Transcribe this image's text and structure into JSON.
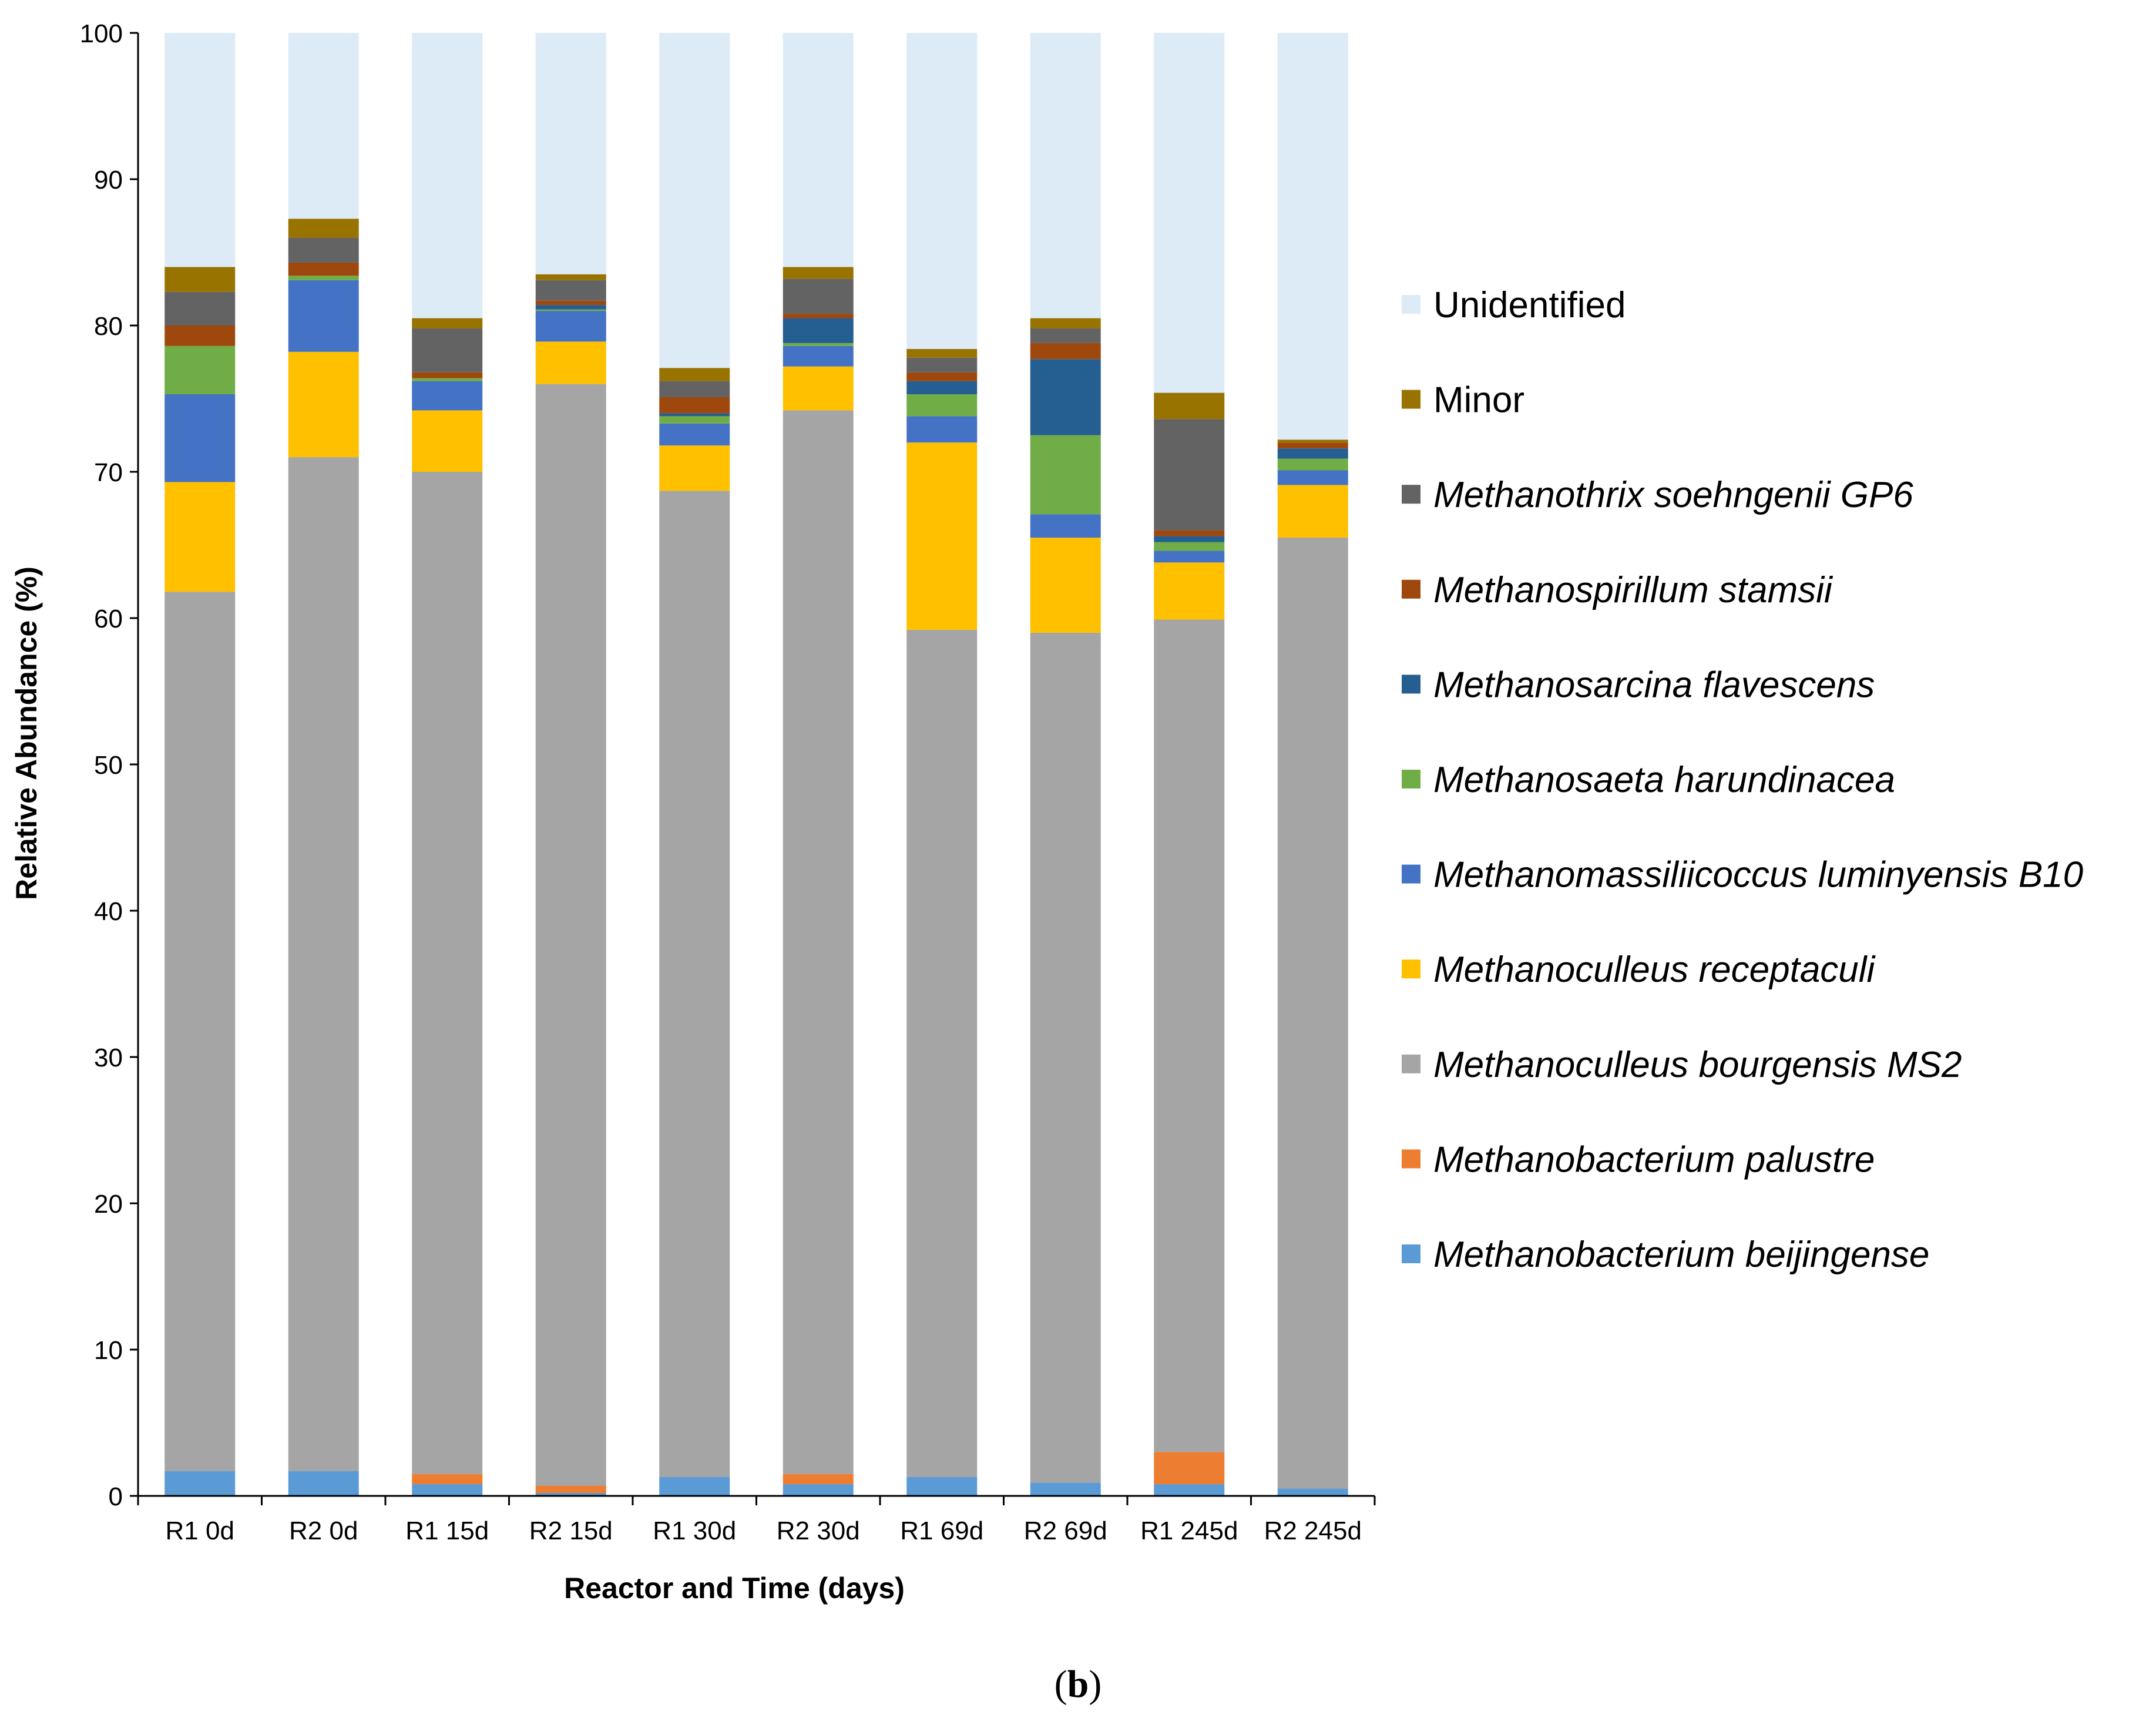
{
  "chart_data": {
    "type": "bar",
    "stacked": true,
    "title": "",
    "xlabel": "Reactor and Time (days)",
    "ylabel": "Relative Abundance (%)",
    "ylim": [
      0,
      100
    ],
    "yticks": [
      0,
      10,
      20,
      30,
      40,
      50,
      60,
      70,
      80,
      90,
      100
    ],
    "grid": false,
    "legend_position": "right",
    "panel_label": "b",
    "categories": [
      "R1 0d",
      "R2 0d",
      "R1 15d",
      "R2 15d",
      "R1 30d",
      "R2 30d",
      "R1 69d",
      "R2 69d",
      "R1 245d",
      "R2 245d"
    ],
    "series": [
      {
        "name": "Methanobacterium beijingense",
        "italic": true,
        "color": "#5B9BD5",
        "values": [
          1.7,
          1.7,
          0.8,
          0.2,
          1.3,
          0.8,
          1.3,
          0.9,
          0.8,
          0.5
        ]
      },
      {
        "name": "Methanobacterium palustre",
        "italic": true,
        "color": "#ED7D31",
        "values": [
          0.0,
          0.0,
          0.7,
          0.5,
          0.0,
          0.7,
          0.0,
          0.0,
          2.2,
          0.0
        ]
      },
      {
        "name": "Methanoculleus bourgensis MS2",
        "italic": true,
        "color": "#A5A5A5",
        "values": [
          60.1,
          69.3,
          68.5,
          75.3,
          67.4,
          72.7,
          57.9,
          58.1,
          56.9,
          65.0
        ]
      },
      {
        "name": "Methanoculleus receptaculi",
        "italic": true,
        "color": "#FFC000",
        "values": [
          7.5,
          7.2,
          4.2,
          2.9,
          3.1,
          3.0,
          12.8,
          6.5,
          3.9,
          3.6
        ]
      },
      {
        "name": "Methanomassiliicoccus luminyensis B10",
        "italic": true,
        "color": "#4472C4",
        "values": [
          6.0,
          4.9,
          2.0,
          2.1,
          1.5,
          1.4,
          1.8,
          1.6,
          0.8,
          1.0
        ]
      },
      {
        "name": "Methanosaeta harundinacea",
        "italic": true,
        "color": "#70AD47",
        "values": [
          3.3,
          0.3,
          0.2,
          0.1,
          0.5,
          0.2,
          1.5,
          5.4,
          0.6,
          0.8
        ]
      },
      {
        "name": "Methanosarcina flavescens",
        "italic": true,
        "color": "#255E91",
        "values": [
          0.0,
          0.0,
          0.0,
          0.3,
          0.2,
          1.7,
          0.9,
          5.2,
          0.4,
          0.7
        ]
      },
      {
        "name": "Methanospirillum stamsii",
        "italic": true,
        "color": "#9E480E",
        "values": [
          1.4,
          0.9,
          0.4,
          0.3,
          1.1,
          0.3,
          0.6,
          1.1,
          0.4,
          0.4
        ]
      },
      {
        "name": "Methanothrix soehngenii GP6",
        "italic": true,
        "color": "#636363",
        "values": [
          2.3,
          1.7,
          3.0,
          1.4,
          1.1,
          2.4,
          1.0,
          1.0,
          7.6,
          0.0
        ]
      },
      {
        "name": "Minor",
        "italic": false,
        "color": "#997300",
        "values": [
          1.7,
          1.3,
          0.7,
          0.4,
          0.9,
          0.8,
          0.6,
          0.7,
          1.8,
          0.2
        ]
      },
      {
        "name": "Unidentified",
        "italic": false,
        "color": "#DDEBF7",
        "values": [
          16.0,
          12.7,
          19.5,
          16.5,
          22.9,
          16.0,
          21.6,
          19.5,
          24.6,
          27.8
        ]
      }
    ]
  }
}
